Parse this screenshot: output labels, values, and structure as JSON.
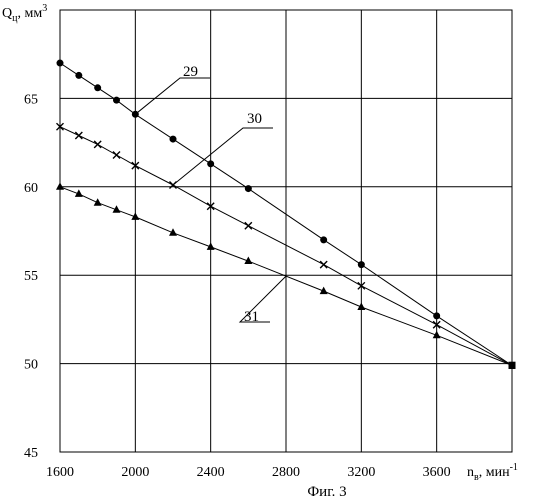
{
  "chart_data": {
    "type": "line",
    "title": "",
    "caption": "Фиг. 3",
    "y_axis": {
      "label": "Q",
      "label_subscript": "ц",
      "unit": ", мм",
      "unit_superscript": "3",
      "min": 45,
      "max": 70,
      "ticks": [
        45,
        50,
        55,
        60,
        65
      ]
    },
    "x_axis": {
      "label": "n",
      "label_subscript": "в",
      "unit": ", мин",
      "unit_superscript": "-1",
      "min": 1600,
      "max": 4000,
      "ticks": [
        1600,
        2000,
        2400,
        2800,
        3200,
        3600
      ]
    },
    "grid": true,
    "series": [
      {
        "name": "29",
        "marker": "circle",
        "points": [
          [
            1600,
            67.0
          ],
          [
            1700,
            66.3
          ],
          [
            1800,
            65.6
          ],
          [
            1900,
            64.9
          ],
          [
            2000,
            64.1
          ],
          [
            2200,
            62.7
          ],
          [
            2400,
            61.3
          ],
          [
            2600,
            59.9
          ],
          [
            3000,
            57.0
          ],
          [
            3200,
            55.6
          ],
          [
            3600,
            52.7
          ],
          [
            4000,
            49.9
          ]
        ]
      },
      {
        "name": "30",
        "marker": "x",
        "points": [
          [
            1600,
            63.4
          ],
          [
            1700,
            62.9
          ],
          [
            1800,
            62.4
          ],
          [
            1900,
            61.8
          ],
          [
            2000,
            61.2
          ],
          [
            2200,
            60.1
          ],
          [
            2400,
            58.9
          ],
          [
            2600,
            57.8
          ],
          [
            3000,
            55.6
          ],
          [
            3200,
            54.4
          ],
          [
            3600,
            52.2
          ],
          [
            4000,
            49.9
          ]
        ]
      },
      {
        "name": "31",
        "marker": "triangle",
        "points": [
          [
            1600,
            60.0
          ],
          [
            1700,
            59.6
          ],
          [
            1800,
            59.1
          ],
          [
            1900,
            58.7
          ],
          [
            2000,
            58.3
          ],
          [
            2200,
            57.4
          ],
          [
            2400,
            56.6
          ],
          [
            2600,
            55.8
          ],
          [
            3000,
            54.1
          ],
          [
            3200,
            53.2
          ],
          [
            3600,
            51.6
          ],
          [
            4000,
            49.9
          ]
        ]
      }
    ],
    "callouts": [
      {
        "series": "29",
        "text": "29",
        "at_x": 2000
      },
      {
        "series": "30",
        "text": "30",
        "at_x": 2200
      },
      {
        "series": "31",
        "text": "31",
        "at_x": 2800
      }
    ]
  }
}
